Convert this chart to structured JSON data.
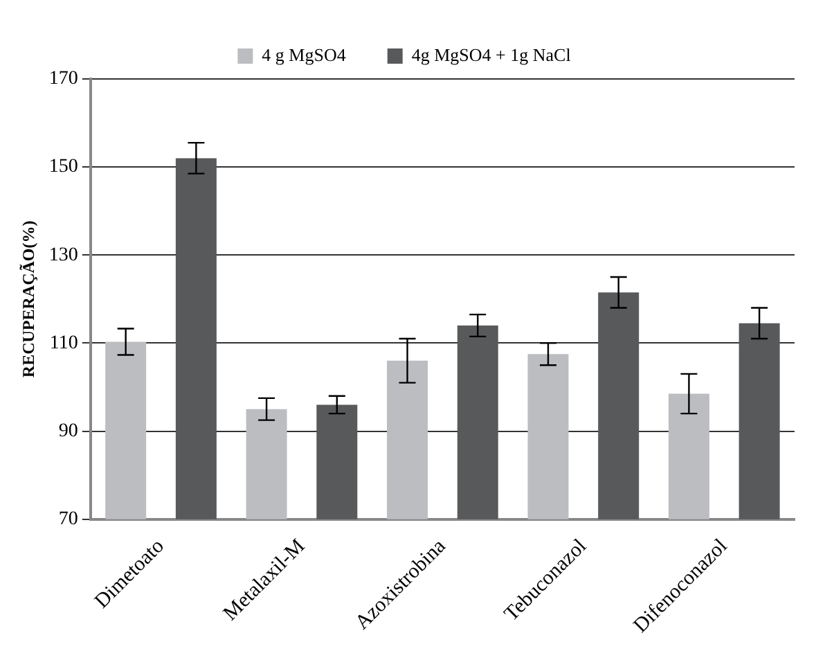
{
  "chart_data": {
    "type": "bar",
    "ylabel": "RECUPERAÇÃO(%)",
    "categories": [
      "Dimetoato",
      "Metalaxil-M",
      "Azoxistrobina",
      "Tebuconazol",
      "Difenoconazol"
    ],
    "series": [
      {
        "name": "4 g MgSO4",
        "color": "#bcbdc0",
        "values": [
          110.3,
          95,
          106,
          107.5,
          98.5
        ],
        "errors": [
          3,
          2.5,
          5,
          2.5,
          4.5
        ]
      },
      {
        "name": "4g MgSO4 + 1g NaCl",
        "color": "#58595b",
        "values": [
          152,
          96,
          114,
          121.5,
          114.5
        ],
        "errors": [
          3.5,
          2,
          2.5,
          3.5,
          3.5
        ]
      }
    ],
    "ylim": [
      70,
      170
    ],
    "yticks": [
      70,
      90,
      110,
      130,
      150,
      170
    ],
    "grid": "y",
    "legend": "top"
  }
}
